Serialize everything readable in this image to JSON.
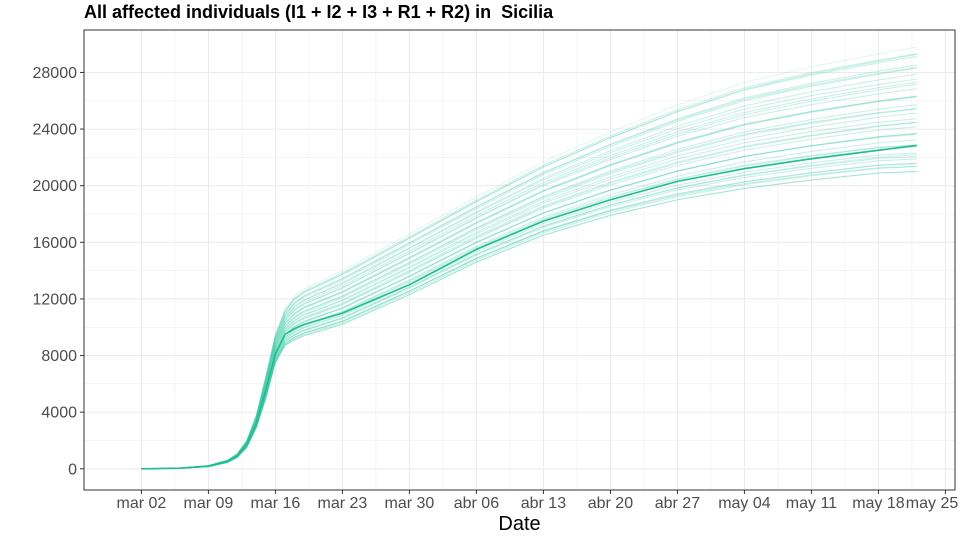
{
  "chart_data": {
    "type": "line",
    "title": "All affected individuals (I1 + I2 + I3 + R1 + R2) in  Sicilia",
    "xlabel": "Date",
    "ylabel": "",
    "x_start": "2020-03-02",
    "xlim": [
      "2020-02-25",
      "2020-05-26"
    ],
    "ylim": [
      -1500,
      31000
    ],
    "x_ticks": [
      "2020-03-02",
      "2020-03-09",
      "2020-03-16",
      "2020-03-23",
      "2020-03-30",
      "2020-04-06",
      "2020-04-13",
      "2020-04-20",
      "2020-04-27",
      "2020-05-04",
      "2020-05-11",
      "2020-05-18",
      "2020-05-25"
    ],
    "x_tick_labels": [
      "mar 02",
      "mar 09",
      "mar 16",
      "mar 23",
      "mar 30",
      "abr 06",
      "abr 13",
      "abr 20",
      "abr 27",
      "may 04",
      "may 11",
      "may 18",
      "may 25"
    ],
    "y_ticks": [
      0,
      4000,
      8000,
      12000,
      16000,
      20000,
      24000,
      28000
    ],
    "y_tick_labels": [
      "0",
      "4000",
      "8000",
      "12000",
      "16000",
      "20000",
      "24000",
      "28000"
    ],
    "grid": true,
    "legend": "none",
    "colors": {
      "main_line": "#1dbf8e",
      "sample_lines": "#33c9a0",
      "grid": "#ebebeb",
      "panel_border": "#333333"
    },
    "series": [
      {
        "role": "main",
        "x": [
          "2020-03-02",
          "2020-03-06",
          "2020-03-09",
          "2020-03-11",
          "2020-03-12",
          "2020-03-13",
          "2020-03-14",
          "2020-03-15",
          "2020-03-16",
          "2020-03-17",
          "2020-03-18",
          "2020-03-19",
          "2020-03-23",
          "2020-03-30",
          "2020-04-06",
          "2020-04-13",
          "2020-04-20",
          "2020-04-27",
          "2020-05-04",
          "2020-05-11",
          "2020-05-18",
          "2020-05-22"
        ],
        "values": [
          0,
          40,
          180,
          520,
          900,
          1700,
          3200,
          5600,
          8100,
          9500,
          9900,
          10200,
          11000,
          13000,
          15500,
          17500,
          19000,
          20300,
          21200,
          21900,
          22500,
          22850
        ]
      }
    ],
    "sample_band": {
      "x": [
        "2020-03-02",
        "2020-03-06",
        "2020-03-09",
        "2020-03-11",
        "2020-03-12",
        "2020-03-13",
        "2020-03-14",
        "2020-03-15",
        "2020-03-16",
        "2020-03-17",
        "2020-03-18",
        "2020-03-19",
        "2020-03-23",
        "2020-03-30",
        "2020-04-06",
        "2020-04-13",
        "2020-04-20",
        "2020-04-27",
        "2020-05-04",
        "2020-05-11",
        "2020-05-18",
        "2020-05-22"
      ],
      "low": [
        0,
        30,
        150,
        450,
        800,
        1500,
        2900,
        5000,
        7500,
        8700,
        9100,
        9400,
        10200,
        12300,
        14600,
        16500,
        17900,
        19000,
        19800,
        20400,
        20900,
        21000
      ],
      "high": [
        0,
        50,
        230,
        620,
        1050,
        2000,
        3800,
        6600,
        9500,
        11300,
        12200,
        12700,
        14000,
        16600,
        19200,
        21700,
        23800,
        25700,
        27300,
        28400,
        29300,
        29800
      ],
      "count": 40
    }
  }
}
